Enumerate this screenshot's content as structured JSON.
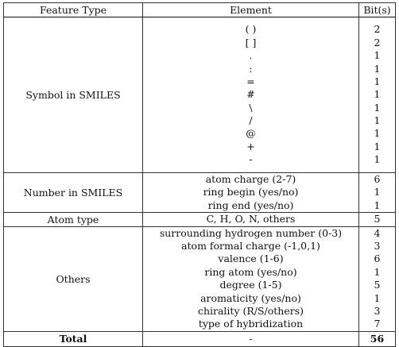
{
  "table": {
    "headers": [
      "Feature Type",
      "Element",
      "Bit(s)"
    ],
    "groups": [
      {
        "feature": "Symbol in SMILES",
        "rows": [
          {
            "element": "( )",
            "bits": "2"
          },
          {
            "element": "[ ]",
            "bits": "2"
          },
          {
            "element": ".",
            "bits": "1"
          },
          {
            "element": ":",
            "bits": "1"
          },
          {
            "element": "=",
            "bits": "1"
          },
          {
            "element": "#",
            "bits": "1"
          },
          {
            "element": "\\",
            "bits": "1"
          },
          {
            "element": "/",
            "bits": "1"
          },
          {
            "element": "@",
            "bits": "1"
          },
          {
            "element": "+",
            "bits": "1"
          },
          {
            "element": "-",
            "bits": "1"
          }
        ]
      },
      {
        "feature": "Number in SMILES",
        "rows": [
          {
            "element": "atom charge (2-7)",
            "bits": "6"
          },
          {
            "element": "ring begin (yes/no)",
            "bits": "1"
          },
          {
            "element": "ring end (yes/no)",
            "bits": "1"
          }
        ]
      },
      {
        "feature": "Atom type",
        "rows": [
          {
            "element": "C, H, O, N, others",
            "bits": "5"
          }
        ]
      },
      {
        "feature": "Others",
        "rows": [
          {
            "element": "surrounding hydrogen number (0-3)",
            "bits": "4"
          },
          {
            "element": "atom formal charge (-1,0,1)",
            "bits": "3"
          },
          {
            "element": "valence (1-6)",
            "bits": "6"
          },
          {
            "element": "ring atom (yes/no)",
            "bits": "1"
          },
          {
            "element": "degree (1-5)",
            "bits": "5"
          },
          {
            "element": "aromaticity (yes/no)",
            "bits": "1"
          },
          {
            "element": "chirality (R/S/others)",
            "bits": "3"
          },
          {
            "element": "type of hybridization",
            "bits": "7"
          }
        ]
      }
    ],
    "total": {
      "label": "Total",
      "element": "-",
      "bits": "56"
    }
  }
}
